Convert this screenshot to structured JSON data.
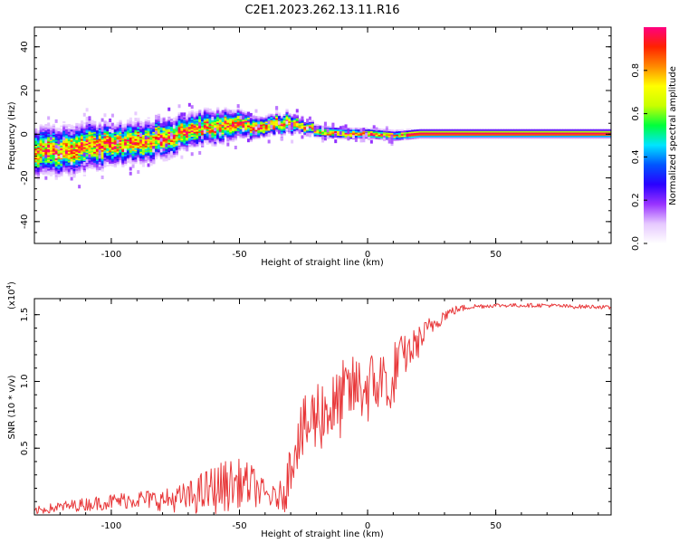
{
  "chart_data": [
    {
      "type": "heatmap",
      "title": "C2E1.2023.262.13.11.R16",
      "xlabel": "Height of straight line (km)",
      "ylabel": "Frequency (Hz)",
      "xlim": [
        -130,
        95
      ],
      "ylim": [
        -50,
        49
      ],
      "x_ticks": [
        -100,
        -50,
        0,
        50
      ],
      "x_tick_labels": [
        "-100",
        "-50",
        "0",
        "50"
      ],
      "y_ticks": [
        -40,
        -20,
        0,
        20,
        40
      ],
      "y_tick_labels": [
        "-40",
        "-20",
        "0",
        "20",
        "40"
      ],
      "grid": false,
      "ridge": {
        "x": [
          -130,
          -120,
          -110,
          -100,
          -90,
          -80,
          -70,
          -60,
          -50,
          -42,
          -36,
          -30,
          -26,
          -20,
          -10,
          0,
          10,
          20,
          40,
          60,
          95
        ],
        "freq": [
          -9,
          -8,
          -6,
          -5,
          -4,
          -2,
          1,
          3,
          4,
          2,
          4,
          5,
          3,
          1,
          0,
          0,
          -1,
          0,
          0,
          0,
          0
        ],
        "spread": [
          7,
          7,
          7,
          6,
          6,
          6,
          5,
          5,
          4,
          3,
          3,
          3,
          2,
          1.8,
          1.6,
          1.5,
          1.5,
          1.3,
          1.3,
          1.3,
          1.3
        ]
      },
      "colorbar": {
        "label": "Normalized spectral amplitude",
        "range": [
          0,
          1
        ],
        "ticks": [
          0.0,
          0.2,
          0.4,
          0.6,
          0.8
        ],
        "tick_labels": [
          "0.0",
          "0.2",
          "0.4",
          "0.6",
          "0.8"
        ],
        "colormap": [
          "#ffffff",
          "#e6c8ff",
          "#9933ff",
          "#2a00ff",
          "#0055ff",
          "#00e5ff",
          "#00ff3c",
          "#c8ff00",
          "#ffff00",
          "#ff8a00",
          "#ff2200",
          "#ff0080"
        ]
      }
    },
    {
      "type": "line",
      "xlabel": "Height of straight line (km)",
      "ylabel": "SNR (10 * v/v)",
      "y_multiplier_base": "(x10",
      "y_multiplier_exp": "4",
      "y_multiplier_close": ")",
      "xlim": [
        -130,
        95
      ],
      "ylim": [
        0,
        1.62
      ],
      "x_ticks": [
        -100,
        -50,
        0,
        50
      ],
      "x_tick_labels": [
        "-100",
        "-50",
        "0",
        "50"
      ],
      "y_ticks": [
        0.5,
        1.0,
        1.5
      ],
      "y_tick_labels": [
        "0.5",
        "1.0",
        "1.5"
      ],
      "grid": false,
      "line_color": "#e8383a",
      "series": [
        {
          "x": [
            -130,
            -120,
            -110,
            -100,
            -90,
            -80,
            -70,
            -62,
            -55,
            -50,
            -45,
            -40,
            -35,
            -32,
            -28,
            -25,
            -20,
            -15,
            -12,
            -10,
            -5,
            0,
            5,
            8,
            9,
            10,
            12,
            15,
            20,
            25,
            30,
            35,
            40,
            50,
            60,
            70,
            80,
            90,
            95
          ],
          "values": [
            0.03,
            0.06,
            0.08,
            0.1,
            0.12,
            0.11,
            0.13,
            0.18,
            0.22,
            0.24,
            0.22,
            0.15,
            0.12,
            0.2,
            0.55,
            0.62,
            0.75,
            0.8,
            0.78,
            0.88,
            0.95,
            0.95,
            1.0,
            1.05,
            0.6,
            1.05,
            1.15,
            1.2,
            1.3,
            1.42,
            1.5,
            1.54,
            1.56,
            1.57,
            1.57,
            1.57,
            1.56,
            1.56,
            1.55
          ],
          "noise": [
            0.03,
            0.04,
            0.05,
            0.06,
            0.07,
            0.08,
            0.12,
            0.18,
            0.2,
            0.18,
            0.16,
            0.1,
            0.08,
            0.18,
            0.22,
            0.25,
            0.3,
            0.28,
            0.3,
            0.28,
            0.25,
            0.28,
            0.25,
            0.25,
            0.35,
            0.25,
            0.2,
            0.15,
            0.12,
            0.08,
            0.05,
            0.03,
            0.02,
            0.015,
            0.015,
            0.015,
            0.015,
            0.015,
            0.015
          ]
        }
      ]
    }
  ]
}
